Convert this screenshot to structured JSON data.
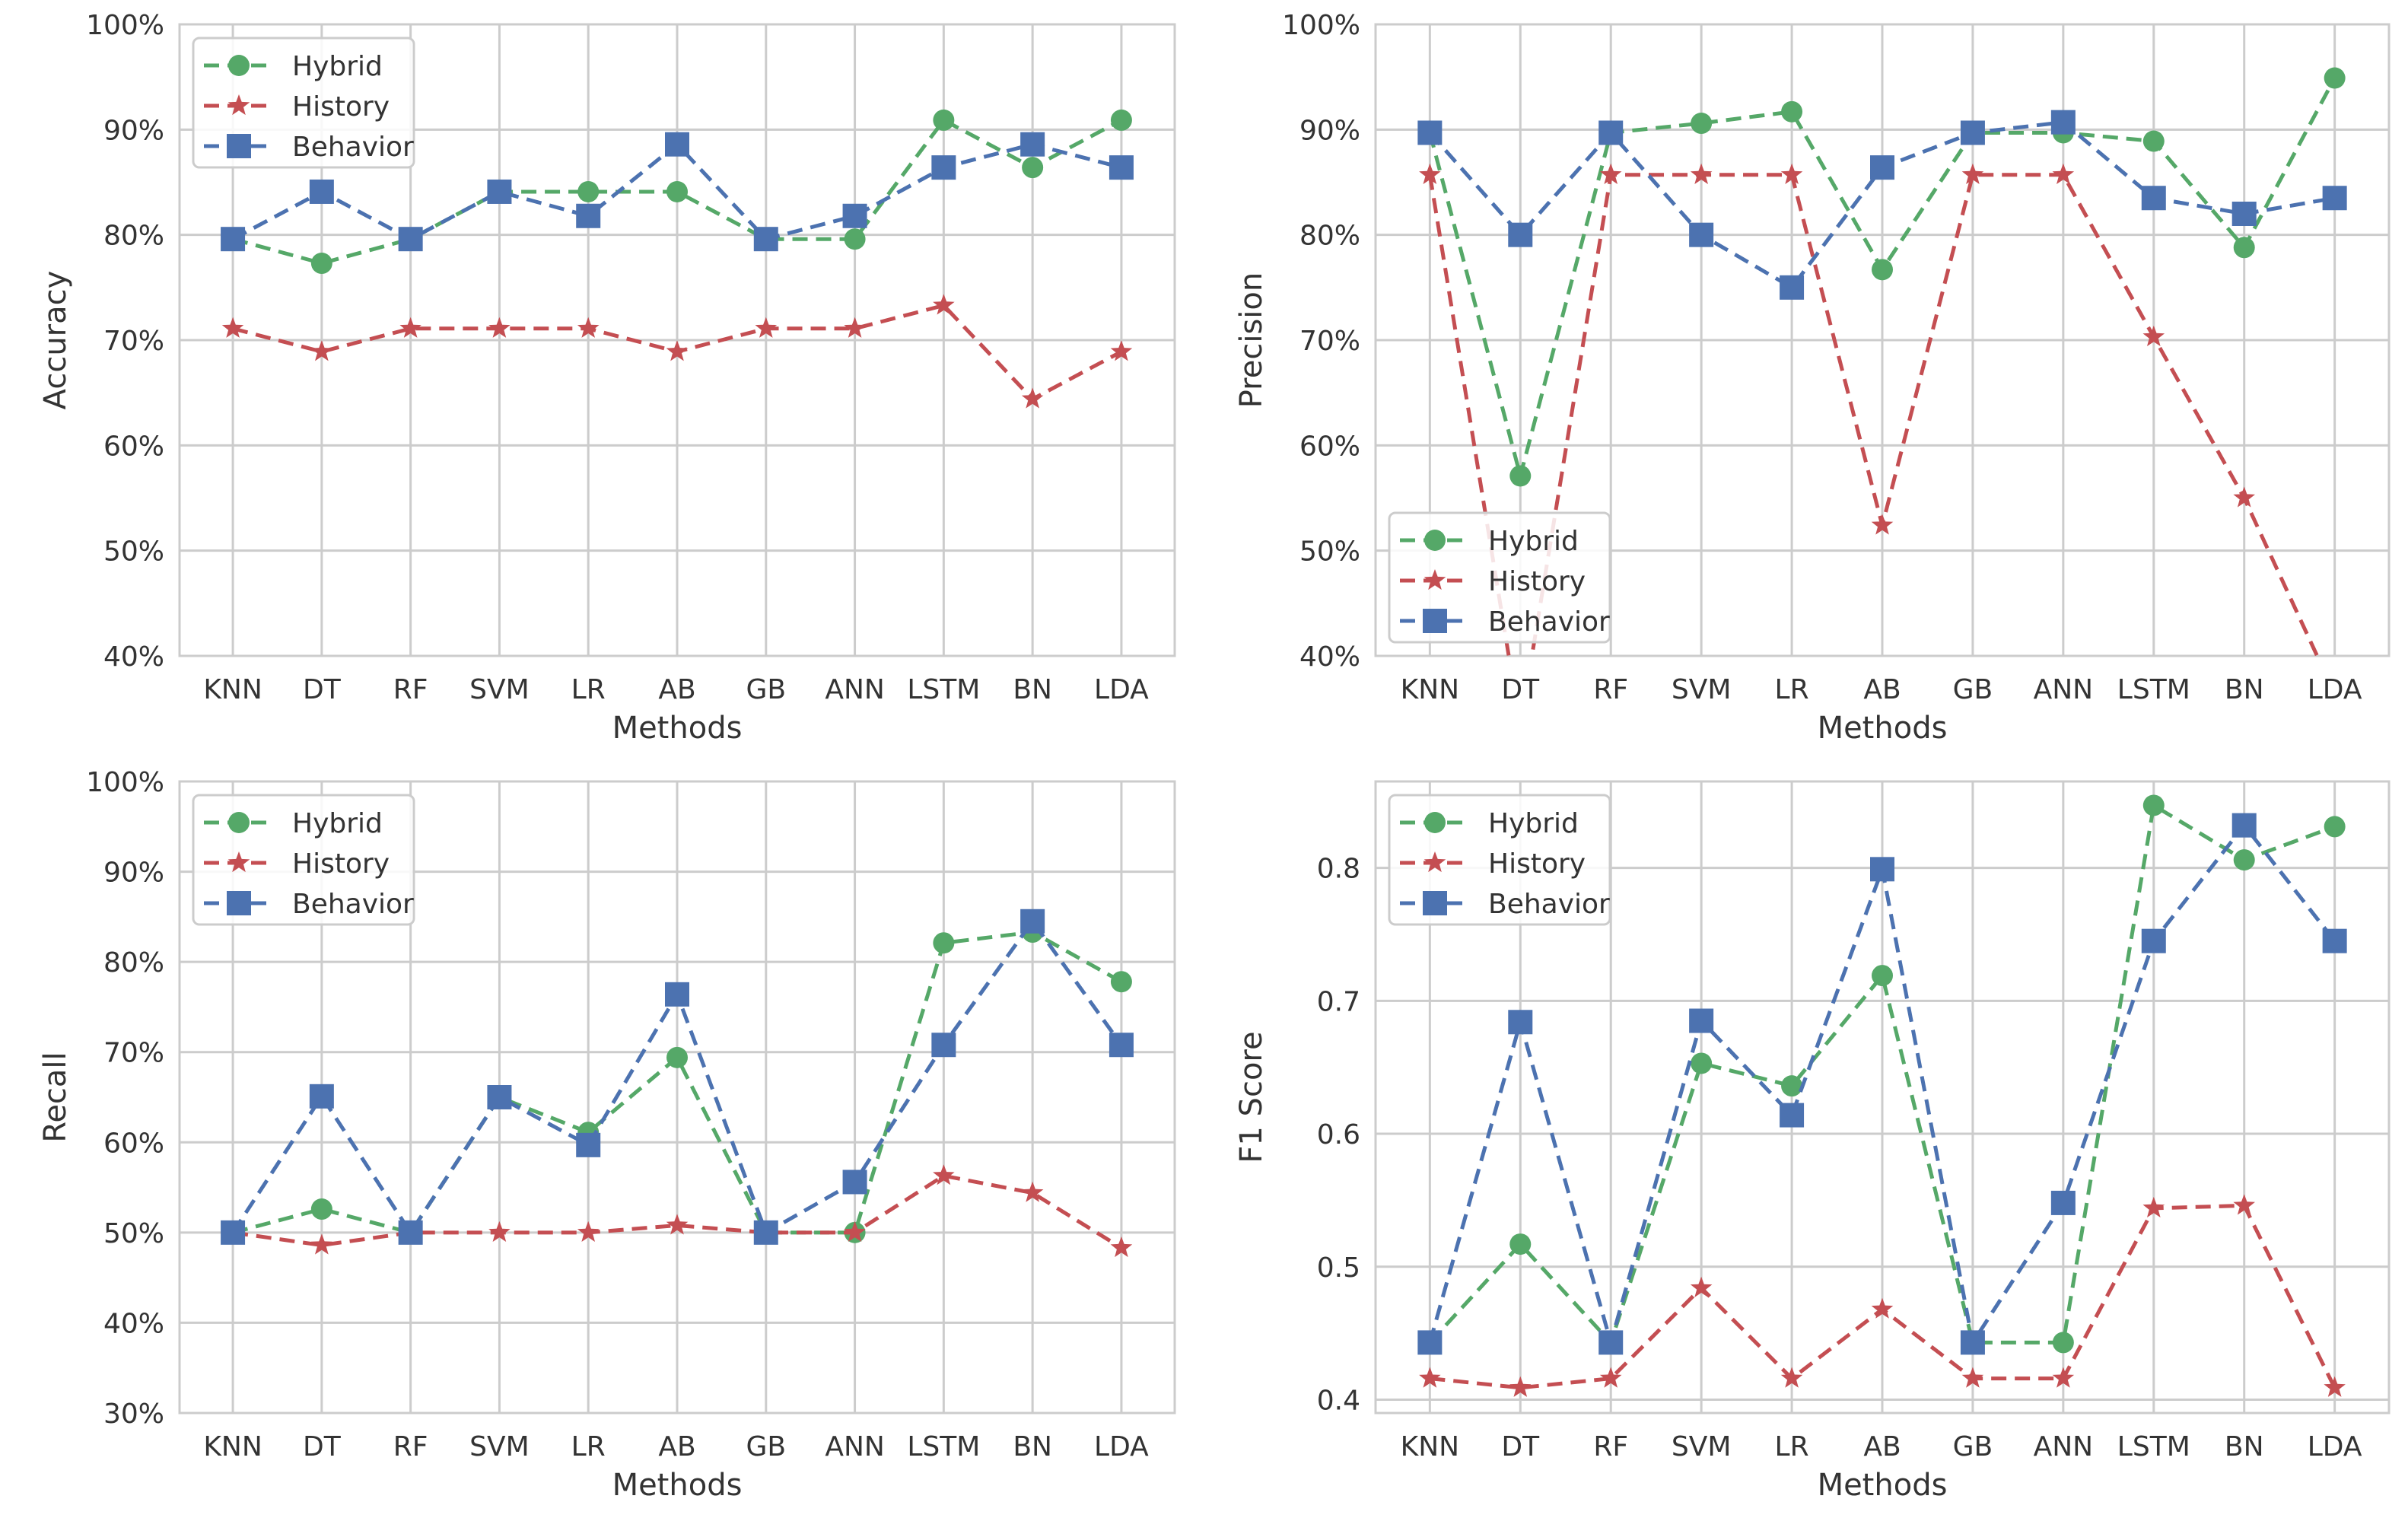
{
  "chart_data": [
    {
      "type": "line",
      "xlabel": "Methods",
      "ylabel": "Accuracy",
      "categories": [
        "KNN",
        "DT",
        "RF",
        "SVM",
        "LR",
        "AB",
        "GB",
        "ANN",
        "LSTM",
        "BN",
        "LDA"
      ],
      "ylim": [
        40,
        100
      ],
      "yticks": [
        40,
        50,
        60,
        70,
        80,
        90,
        100
      ],
      "ytick_labels": [
        "40%",
        "50%",
        "60%",
        "70%",
        "80%",
        "90%",
        "100%"
      ],
      "grid": true,
      "legend_position": "top-left",
      "series": [
        {
          "name": "Hybrid",
          "color": "#55a868",
          "marker": "circle",
          "values": [
            79.6,
            77.3,
            79.6,
            84.1,
            84.1,
            84.1,
            79.6,
            79.6,
            90.9,
            86.4,
            90.9
          ]
        },
        {
          "name": "History",
          "color": "#c44e52",
          "marker": "star",
          "values": [
            71.1,
            68.9,
            71.1,
            71.1,
            71.1,
            68.9,
            71.1,
            71.1,
            73.3,
            64.4,
            68.9
          ]
        },
        {
          "name": "Behavior",
          "color": "#4c72b0",
          "marker": "square",
          "values": [
            79.6,
            84.1,
            79.6,
            84.1,
            81.8,
            88.6,
            79.6,
            81.8,
            86.4,
            88.6,
            86.4
          ]
        }
      ]
    },
    {
      "type": "line",
      "xlabel": "Methods",
      "ylabel": "Precision",
      "categories": [
        "KNN",
        "DT",
        "RF",
        "SVM",
        "LR",
        "AB",
        "GB",
        "ANN",
        "LSTM",
        "BN",
        "LDA"
      ],
      "ylim": [
        40,
        100
      ],
      "yticks": [
        40,
        50,
        60,
        70,
        80,
        90,
        100
      ],
      "ytick_labels": [
        "40%",
        "50%",
        "60%",
        "70%",
        "80%",
        "90%",
        "100%"
      ],
      "grid": true,
      "legend_position": "lower-left",
      "series": [
        {
          "name": "Hybrid",
          "color": "#55a868",
          "marker": "circle",
          "values": [
            89.7,
            57.1,
            89.7,
            90.6,
            91.7,
            76.7,
            89.7,
            89.7,
            88.9,
            78.8,
            94.9
          ]
        },
        {
          "name": "History",
          "color": "#c44e52",
          "marker": "star",
          "values": [
            85.7,
            33.3,
            85.7,
            85.7,
            85.7,
            52.4,
            85.7,
            85.7,
            70.3,
            55.0,
            36.4
          ]
        },
        {
          "name": "Behavior",
          "color": "#4c72b0",
          "marker": "square",
          "values": [
            89.7,
            80.0,
            89.7,
            80.0,
            75.0,
            86.4,
            89.7,
            90.7,
            83.5,
            82.0,
            83.5
          ]
        }
      ]
    },
    {
      "type": "line",
      "xlabel": "Methods",
      "ylabel": "Recall",
      "categories": [
        "KNN",
        "DT",
        "RF",
        "SVM",
        "LR",
        "AB",
        "GB",
        "ANN",
        "LSTM",
        "BN",
        "LDA"
      ],
      "ylim": [
        30,
        100
      ],
      "yticks": [
        30,
        40,
        50,
        60,
        70,
        80,
        90,
        100
      ],
      "ytick_labels": [
        "30%",
        "40%",
        "50%",
        "60%",
        "70%",
        "80%",
        "90%",
        "100%"
      ],
      "grid": true,
      "legend_position": "top-left",
      "series": [
        {
          "name": "Hybrid",
          "color": "#55a868",
          "marker": "circle",
          "values": [
            50.0,
            52.6,
            50.0,
            65.0,
            61.1,
            69.4,
            50.0,
            50.0,
            82.1,
            83.3,
            77.8
          ]
        },
        {
          "name": "History",
          "color": "#c44e52",
          "marker": "star",
          "values": [
            50.0,
            48.6,
            50.0,
            50.0,
            50.0,
            50.8,
            50.0,
            50.0,
            56.3,
            54.4,
            48.3
          ]
        },
        {
          "name": "Behavior",
          "color": "#4c72b0",
          "marker": "square",
          "values": [
            50.0,
            65.1,
            50.0,
            65.0,
            59.7,
            76.4,
            50.0,
            55.6,
            70.8,
            84.5,
            70.8
          ]
        }
      ]
    },
    {
      "type": "line",
      "xlabel": "Methods",
      "ylabel": "F1 Score",
      "categories": [
        "KNN",
        "DT",
        "RF",
        "SVM",
        "LR",
        "AB",
        "GB",
        "ANN",
        "LSTM",
        "BN",
        "LDA"
      ],
      "ylim": [
        0.39,
        0.865
      ],
      "yticks": [
        0.4,
        0.5,
        0.6,
        0.7,
        0.8
      ],
      "ytick_labels": [
        "0.4",
        "0.5",
        "0.6",
        "0.7",
        "0.8"
      ],
      "grid": true,
      "legend_position": "top-left",
      "series": [
        {
          "name": "Hybrid",
          "color": "#55a868",
          "marker": "circle",
          "values": [
            0.443,
            0.517,
            0.443,
            0.653,
            0.636,
            0.719,
            0.443,
            0.443,
            0.847,
            0.806,
            0.831
          ]
        },
        {
          "name": "History",
          "color": "#c44e52",
          "marker": "star",
          "values": [
            0.416,
            0.409,
            0.416,
            0.484,
            0.416,
            0.468,
            0.416,
            0.416,
            0.544,
            0.546,
            0.409
          ]
        },
        {
          "name": "Behavior",
          "color": "#4c72b0",
          "marker": "square",
          "values": [
            0.443,
            0.684,
            0.443,
            0.685,
            0.614,
            0.799,
            0.443,
            0.548,
            0.745,
            0.832,
            0.745
          ]
        }
      ]
    }
  ]
}
